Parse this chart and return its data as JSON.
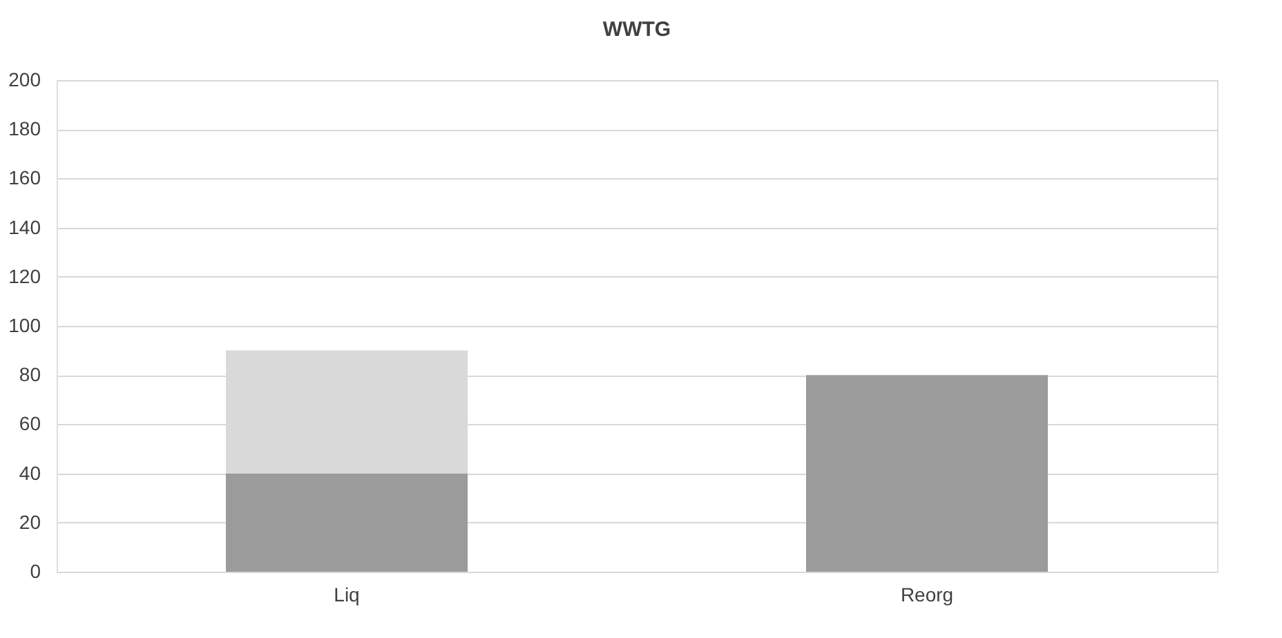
{
  "chart_data": {
    "type": "bar",
    "title": "WWTG",
    "stacked": true,
    "categories": [
      "Liq",
      "Reorg"
    ],
    "series": [
      {
        "color": "#9b9b9b",
        "values": [
          40,
          80
        ]
      },
      {
        "color": "#d9d9d9",
        "values": [
          50,
          null
        ]
      }
    ],
    "ylim": [
      0,
      200
    ],
    "yticks": [
      0,
      20,
      40,
      60,
      80,
      100,
      120,
      140,
      160,
      180,
      200
    ],
    "grid": "y",
    "legend": false
  }
}
